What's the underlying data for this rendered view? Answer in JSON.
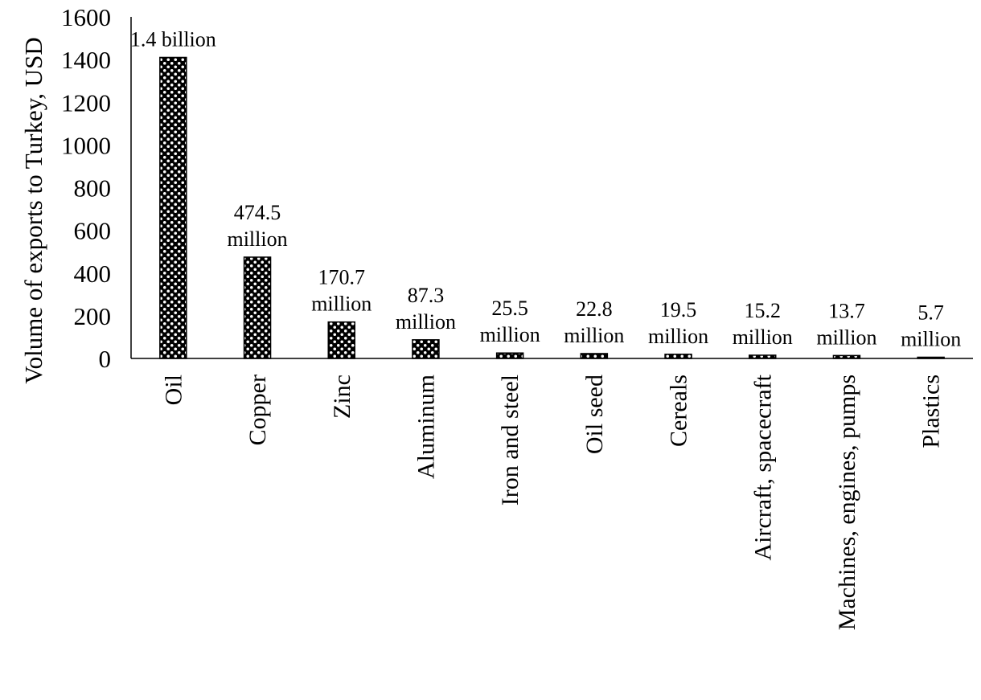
{
  "chart_data": {
    "type": "bar",
    "title": "",
    "xlabel": "",
    "ylabel": "Volume of exports to Turkey, USD",
    "ylim": [
      0,
      1600
    ],
    "yticks": [
      0,
      200,
      400,
      600,
      800,
      1000,
      1200,
      1400,
      1600
    ],
    "grid": false,
    "legend": "none",
    "bar_pattern": "black-white checker (dotted) hatch",
    "categories": [
      "Oil",
      "Copper",
      "Zinc",
      "Aluminum",
      "Iron and steel",
      "Oil seed",
      "Cereals",
      "Aircraft, spacecraft",
      "Machines, engines, pumps",
      "Plastics"
    ],
    "values": [
      1410,
      474.5,
      170.7,
      87.3,
      25.5,
      22.8,
      19.5,
      15.2,
      13.7,
      5.7
    ],
    "data_labels": [
      [
        "1.4 billion"
      ],
      [
        "474.5",
        "million"
      ],
      [
        "170.7",
        "million"
      ],
      [
        "87.3",
        "million"
      ],
      [
        "25.5",
        "million"
      ],
      [
        "22.8",
        "million"
      ],
      [
        "19.5",
        "million"
      ],
      [
        "15.2",
        "million"
      ],
      [
        "13.7",
        "million"
      ],
      [
        "5.7",
        "million"
      ]
    ]
  },
  "colors": {
    "bar_fill": "#000000",
    "bar_pattern_dot": "#ffffff",
    "axis": "#000000",
    "text": "#000000",
    "background": "#ffffff"
  }
}
